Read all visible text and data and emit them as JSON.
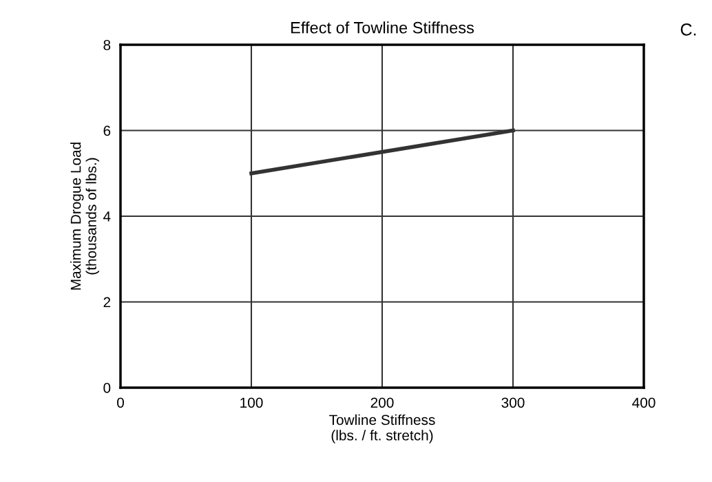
{
  "chart_data": {
    "type": "line",
    "title": "Effect of Towline Stiffness",
    "xlabel": "Towline Stiffness\n(lbs. / ft. stretch)",
    "ylabel": "Maximum Drogue Load\n(thousands of lbs.)",
    "x": [
      100,
      300
    ],
    "series": [
      {
        "color": "#333333",
        "values": [
          5,
          6
        ]
      }
    ],
    "xlim": [
      0,
      400
    ],
    "xticks": [
      0,
      100,
      200,
      300,
      400
    ],
    "ylim": [
      0,
      8
    ],
    "yticks": [
      0,
      2,
      4,
      6,
      8
    ],
    "grid": true,
    "marker": "none",
    "line_style": "solid",
    "annotations": [
      "C."
    ]
  }
}
